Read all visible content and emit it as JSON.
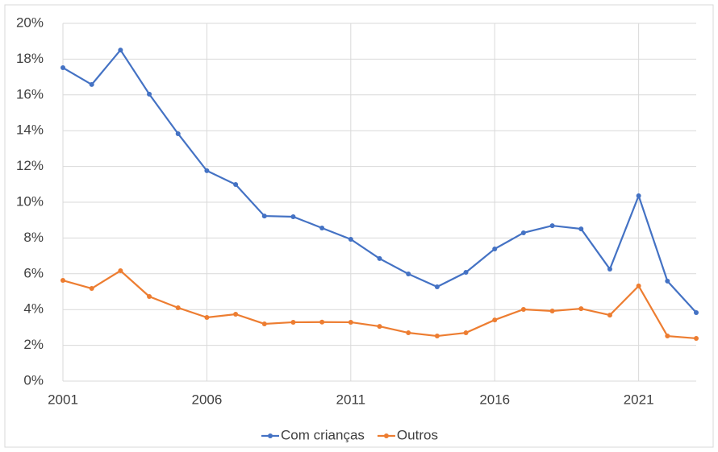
{
  "chart_data": {
    "type": "line",
    "x": [
      2001,
      2002,
      2003,
      2004,
      2005,
      2006,
      2007,
      2008,
      2009,
      2010,
      2011,
      2012,
      2013,
      2014,
      2015,
      2016,
      2017,
      2018,
      2019,
      2020,
      2021,
      2022,
      2023
    ],
    "series": [
      {
        "name": "Com crianças",
        "color": "#4472c4",
        "values": [
          17.52,
          16.58,
          18.51,
          16.04,
          13.83,
          11.76,
          10.99,
          9.23,
          9.19,
          8.56,
          7.93,
          6.85,
          5.99,
          5.27,
          6.08,
          7.39,
          8.29,
          8.69,
          8.51,
          6.26,
          10.36,
          5.59,
          3.83
        ]
      },
      {
        "name": "Outros",
        "color": "#ed7d31",
        "values": [
          5.63,
          5.18,
          6.17,
          4.73,
          4.1,
          3.56,
          3.74,
          3.2,
          3.29,
          3.3,
          3.29,
          3.06,
          2.7,
          2.52,
          2.7,
          3.42,
          4.01,
          3.92,
          4.05,
          3.69,
          5.32,
          2.52,
          2.39
        ]
      }
    ],
    "xlim": [
      2001,
      2023
    ],
    "xticks": [
      2001,
      2006,
      2011,
      2016,
      2021
    ],
    "ylim": [
      0,
      20
    ],
    "yticks": [
      {
        "value": 0,
        "label": "0%"
      },
      {
        "value": 2,
        "label": "2%"
      },
      {
        "value": 4,
        "label": "4%"
      },
      {
        "value": 6,
        "label": "6%"
      },
      {
        "value": 8,
        "label": "8%"
      },
      {
        "value": 10,
        "label": "10%"
      },
      {
        "value": 12,
        "label": "12%"
      },
      {
        "value": 14,
        "label": "14%"
      },
      {
        "value": 16,
        "label": "16%"
      },
      {
        "value": 18,
        "label": "18%"
      },
      {
        "value": 20,
        "label": "20%"
      }
    ],
    "grid": true,
    "legend": "bottom"
  }
}
